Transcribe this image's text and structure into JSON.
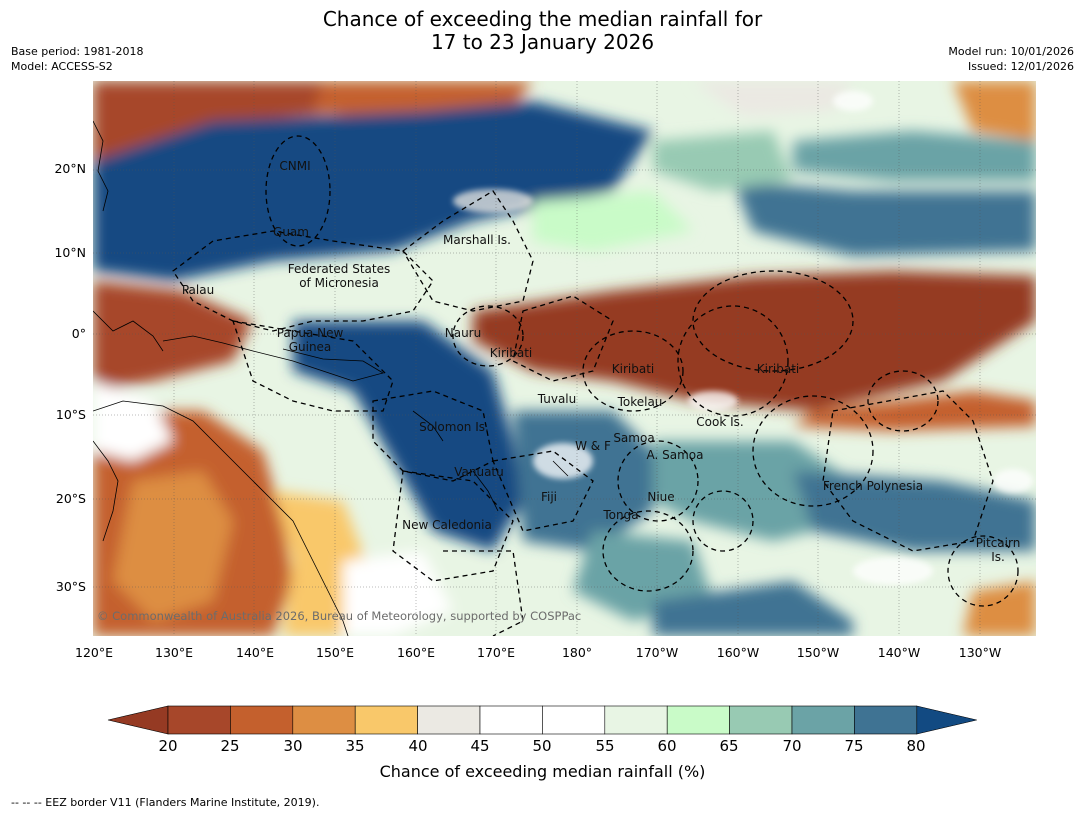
{
  "title": {
    "line1": "Chance of exceeding the median rainfall for",
    "line2": "17 to 23 January 2026"
  },
  "meta": {
    "base_period": "Base period: 1981-2018",
    "model": "Model: ACCESS-S2",
    "model_run": "Model run: 10/01/2026",
    "issued": "Issued: 12/01/2026"
  },
  "map": {
    "lat_ticks": [
      "20°N",
      "10°N",
      "0°",
      "10°S",
      "20°S",
      "30°S"
    ],
    "lon_ticks": [
      "120°E",
      "130°E",
      "140°E",
      "150°E",
      "160°E",
      "170°E",
      "180°",
      "170°W",
      "160°W",
      "150°W",
      "140°W",
      "130°W"
    ],
    "regions": [
      {
        "name": "CNMI"
      },
      {
        "name": "Guam"
      },
      {
        "name": "Marshall Is."
      },
      {
        "name": "Federated States"
      },
      {
        "name": "of Micronesia"
      },
      {
        "name": "Palau"
      },
      {
        "name": "Papua New"
      },
      {
        "name": "Guinea"
      },
      {
        "name": "Nauru"
      },
      {
        "name": "Kiribati"
      },
      {
        "name": "Kiribati"
      },
      {
        "name": "Kiribati"
      },
      {
        "name": "Tuvalu"
      },
      {
        "name": "Tokelau"
      },
      {
        "name": "Cook Is."
      },
      {
        "name": "Solomon Is."
      },
      {
        "name": "W & F"
      },
      {
        "name": "Samoa"
      },
      {
        "name": "A. Samoa"
      },
      {
        "name": "Vanuatu"
      },
      {
        "name": "Fiji"
      },
      {
        "name": "Niue"
      },
      {
        "name": "French Polynesia"
      },
      {
        "name": "Tonga"
      },
      {
        "name": "New Caledonia"
      },
      {
        "name": "Pitcairn"
      },
      {
        "name": "Is."
      }
    ],
    "copyright": "© Commonwealth of Australia 2026, Bureau of Meteorology, supported by COSPPac"
  },
  "colorbar": {
    "ticks": [
      "20",
      "25",
      "30",
      "35",
      "40",
      "45",
      "50",
      "55",
      "60",
      "65",
      "70",
      "75",
      "80"
    ],
    "colors": [
      "#a7472a",
      "#c4602d",
      "#dd8e43",
      "#f9c86a",
      "#ebe9e3",
      "#ffffff",
      "#ffffff",
      "#e8f5e4",
      "#c9fbc8",
      "#98cab3",
      "#6ba3a6",
      "#3f7393"
    ],
    "under_color": "#953a23",
    "over_color": "#124a82",
    "label": "Chance of exceeding median rainfall (%)"
  },
  "footer": {
    "eez": "--  --  -- EEZ border V11 (Flanders Marine Institute, 2019)."
  }
}
